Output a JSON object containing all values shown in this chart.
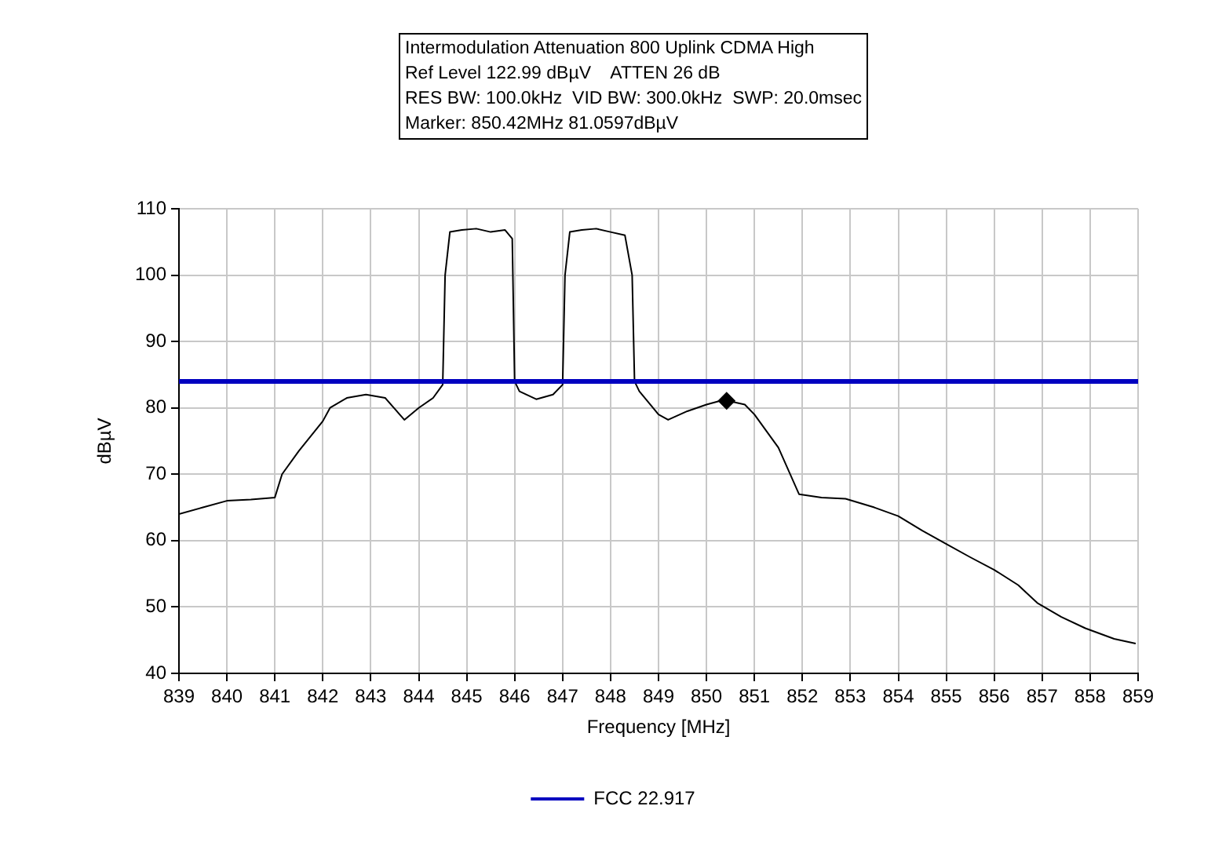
{
  "chart_data": {
    "type": "line",
    "title": "Intermodulation Attenuation 800 Uplink CDMA High",
    "annotations": [
      "Ref Level 122.99 dBµV    ATTEN 26 dB",
      "RES BW: 100.0kHz  VID BW: 300.0kHz  SWP: 20.0msec",
      "Marker: 850.42MHz 81.0597dBµV"
    ],
    "xlabel": "Frequency [MHz]",
    "ylabel": "dBµV",
    "x": [
      839,
      839.5,
      840,
      840.5,
      841,
      841.15,
      841.5,
      842,
      842.15,
      842.5,
      842.9,
      843.3,
      843.7,
      844,
      844.3,
      844.5,
      844.55,
      844.65,
      844.9,
      845.2,
      845.5,
      845.8,
      845.95,
      846.0,
      846.1,
      846.45,
      846.8,
      847.0,
      847.05,
      847.15,
      847.4,
      847.7,
      848.0,
      848.3,
      848.45,
      848.5,
      848.6,
      849.0,
      849.2,
      849.6,
      850.0,
      850.36,
      850.8,
      851.0,
      851.5,
      851.93,
      852.4,
      852.9,
      853.5,
      854.0,
      854.5,
      855.0,
      855.5,
      856.0,
      856.5,
      856.9,
      857.4,
      857.9,
      858.5,
      858.95
    ],
    "series": [
      {
        "color": "#000000",
        "values": [
          64,
          65,
          66,
          66.2,
          66.5,
          70,
          73.5,
          78,
          80,
          81.5,
          82,
          81.5,
          78.2,
          80,
          81.5,
          83.5,
          100,
          106.5,
          106.8,
          107,
          106.5,
          106.8,
          105.5,
          84,
          82.5,
          81.3,
          82,
          83.5,
          100,
          106.5,
          106.8,
          107,
          106.5,
          106,
          100,
          84,
          82.5,
          79,
          78.2,
          79.5,
          80.5,
          81.2,
          80.5,
          79,
          74,
          67,
          66.5,
          66.3,
          65,
          63.7,
          61.5,
          59.5,
          57.5,
          55.6,
          53.3,
          50.6,
          48.5,
          46.8,
          45.2,
          44.5
        ]
      },
      {
        "type": "scatter",
        "x": [
          850.42
        ],
        "color": "#000000",
        "values": [
          81.0597
        ]
      }
    ],
    "xlim": [
      839,
      859
    ],
    "xticks": [
      839,
      840,
      841,
      842,
      843,
      844,
      845,
      846,
      847,
      848,
      849,
      850,
      851,
      852,
      853,
      854,
      855,
      856,
      857,
      858,
      859
    ],
    "ylim": [
      40,
      110
    ],
    "yticks": [
      40,
      50,
      60,
      70,
      80,
      90,
      100,
      110
    ],
    "ref_lines": [
      {
        "axis": "y",
        "value": 84,
        "label": "FCC 22.917",
        "color": "#0000c0"
      }
    ],
    "grid": true,
    "legend": "bottom",
    "line_style": "solid"
  }
}
